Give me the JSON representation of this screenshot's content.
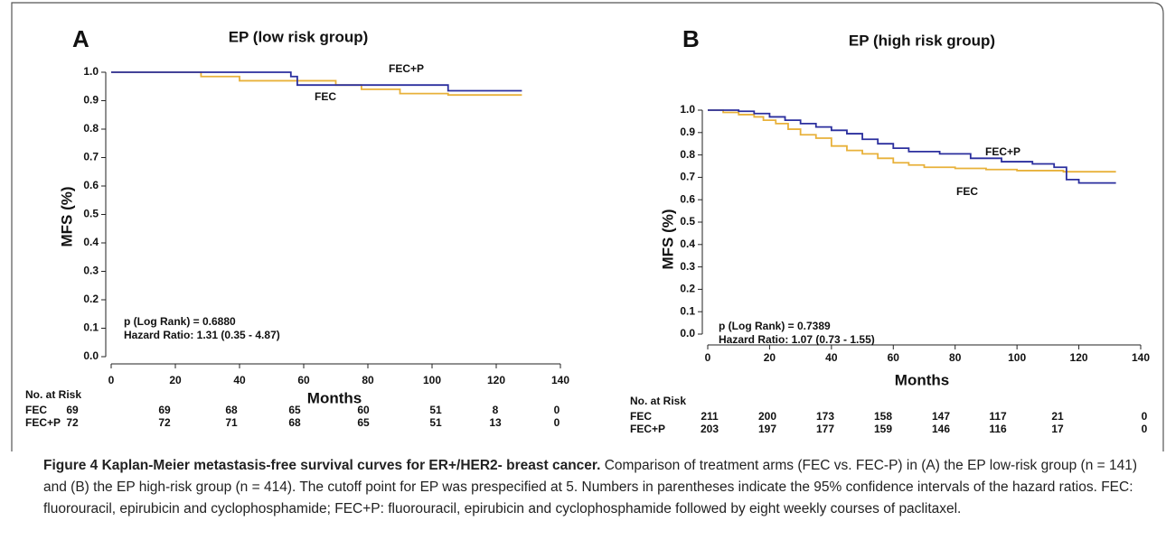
{
  "chart_data": [
    {
      "type": "line",
      "step": "post",
      "panel": "A",
      "title": "EP (low risk group)",
      "x_label": "Months",
      "y_label": "MFS (%)",
      "xlim": [
        0,
        140
      ],
      "xticks": [
        0,
        20,
        40,
        60,
        80,
        100,
        120,
        140
      ],
      "ylim": [
        0,
        1
      ],
      "yticks": [
        {
          "value": 0,
          "label": "0.0"
        },
        0.1,
        0.2,
        0.3,
        0.4,
        0.5,
        0.6,
        0.7,
        0.8,
        0.9,
        {
          "value": 1,
          "label": "1.0"
        }
      ],
      "series": [
        {
          "name": "FEC",
          "color": "#e8b13a",
          "x": [
            0,
            28,
            40,
            56,
            70,
            78,
            90,
            105,
            128
          ],
          "values": [
            1,
            0.985,
            0.97,
            0.97,
            0.955,
            0.94,
            0.925,
            0.92,
            0.92
          ]
        },
        {
          "name": "FEC+P",
          "color": "#2b2f9e",
          "x": [
            0,
            56,
            58,
            105,
            128
          ],
          "values": [
            1,
            0.985,
            0.955,
            0.935,
            0.935
          ]
        }
      ],
      "annotations": [
        "p (Log Rank) = 0.6880",
        "Hazard Ratio: 1.31 (0.35 - 4.87)"
      ],
      "risk_table": {
        "title": "No. at Risk",
        "rows": [
          {
            "name": "FEC",
            "values": [
              69,
              69,
              68,
              65,
              60,
              51,
              8,
              0
            ]
          },
          {
            "name": "FEC+P",
            "values": [
              72,
              72,
              71,
              68,
              65,
              51,
              13,
              0
            ]
          }
        ]
      }
    },
    {
      "type": "line",
      "step": "post",
      "panel": "B",
      "title": "EP (high risk group)",
      "x_label": "Months",
      "y_label": "MFS (%)",
      "xlim": [
        0,
        140
      ],
      "xticks": [
        0,
        20,
        40,
        60,
        80,
        100,
        120,
        140
      ],
      "ylim": [
        0,
        1
      ],
      "yticks": [
        {
          "value": 0,
          "label": "0.0"
        },
        0.1,
        0.2,
        0.3,
        0.4,
        0.5,
        0.6,
        0.7,
        0.8,
        0.9,
        {
          "value": 1,
          "label": "1.0"
        }
      ],
      "series": [
        {
          "name": "FEC",
          "color": "#e8b13a",
          "x": [
            0,
            5,
            10,
            15,
            18,
            22,
            26,
            30,
            35,
            40,
            45,
            50,
            55,
            60,
            65,
            70,
            80,
            90,
            100,
            115,
            132
          ],
          "values": [
            1,
            0.99,
            0.98,
            0.97,
            0.955,
            0.94,
            0.915,
            0.89,
            0.875,
            0.84,
            0.82,
            0.805,
            0.785,
            0.765,
            0.755,
            0.745,
            0.74,
            0.735,
            0.73,
            0.725,
            0.725
          ]
        },
        {
          "name": "FEC+P",
          "color": "#2b2f9e",
          "x": [
            0,
            10,
            15,
            20,
            25,
            30,
            35,
            40,
            45,
            50,
            55,
            60,
            65,
            75,
            85,
            95,
            105,
            112,
            116,
            120,
            132
          ],
          "values": [
            1,
            0.995,
            0.985,
            0.97,
            0.955,
            0.94,
            0.925,
            0.91,
            0.895,
            0.87,
            0.85,
            0.83,
            0.815,
            0.805,
            0.785,
            0.77,
            0.76,
            0.745,
            0.69,
            0.675,
            0.675
          ]
        }
      ],
      "annotations": [
        "p (Log Rank) = 0.7389",
        "Hazard Ratio: 1.07 (0.73 - 1.55)"
      ],
      "risk_table": {
        "title": "No. at Risk",
        "rows": [
          {
            "name": "FEC",
            "values": [
              211,
              200,
              173,
              158,
              147,
              117,
              21,
              0
            ]
          },
          {
            "name": "FEC+P",
            "values": [
              203,
              197,
              177,
              159,
              146,
              116,
              17,
              0
            ]
          }
        ]
      }
    }
  ],
  "caption": {
    "title": "Figure 4 Kaplan-Meier metastasis-free survival curves for ER+/HER2- breast cancer.",
    "text": "Comparison of treatment arms (FEC vs. FEC-P) in (A) the EP low-risk group (n = 141) and (B) the EP high-risk group (n = 414). The cutoff point for EP was prespecified at 5. Numbers in parentheses indicate the 95% confidence intervals of the hazard ratios. FEC: fluorouracil, epirubicin and cyclophosphamide; FEC+P: fluorouracil, epirubicin and cyclophosphamide followed by eight weekly courses of paclitaxel."
  }
}
